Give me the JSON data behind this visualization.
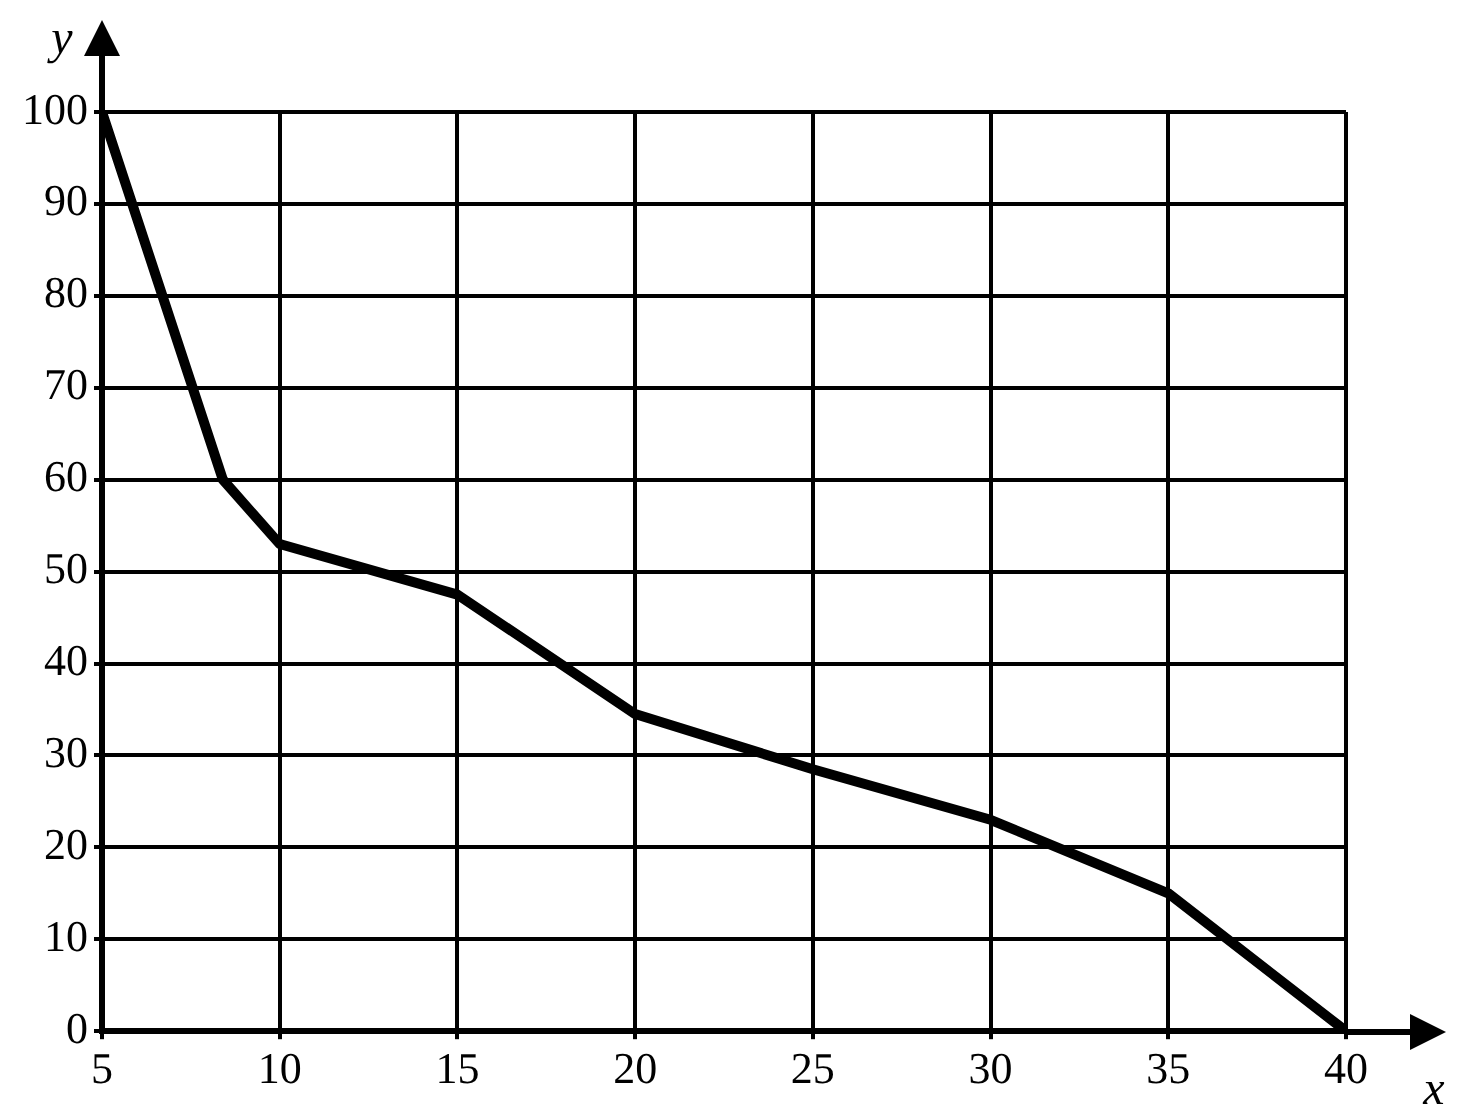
{
  "chart_data": {
    "type": "line",
    "xlabel": "x",
    "ylabel": "y",
    "x": [
      5,
      8.4,
      10,
      15,
      20,
      25,
      30,
      35,
      40
    ],
    "series": [
      {
        "color": "#000000",
        "values": [
          100,
          60,
          53,
          47.5,
          34.5,
          28.5,
          23,
          15,
          0
        ]
      }
    ],
    "xlim": [
      5,
      40
    ],
    "ylim": [
      0,
      100
    ],
    "xticks": [
      5,
      10,
      15,
      20,
      25,
      30,
      35,
      40
    ],
    "yticks": [
      0,
      10,
      20,
      30,
      40,
      50,
      60,
      70,
      80,
      90,
      100
    ],
    "grid": true,
    "legend": false
  }
}
